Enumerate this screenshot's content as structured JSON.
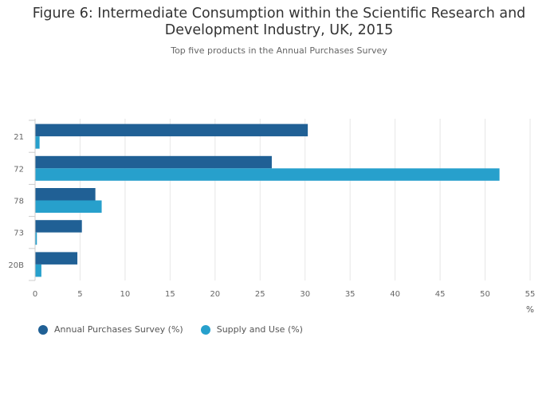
{
  "chart_data": {
    "type": "bar",
    "orientation": "horizontal",
    "title": "Figure 6: Intermediate Consumption within the Scientific Research and Development Industry, UK, 2015",
    "subtitle": "Top five products in the Annual Purchases Survey",
    "categories": [
      "21",
      "72",
      "78",
      "73",
      "20B"
    ],
    "series": [
      {
        "name": "Annual Purchases Survey (%)",
        "color": "#206095",
        "values": [
          30.3,
          26.3,
          6.7,
          5.2,
          4.7
        ]
      },
      {
        "name": "Supply and Use (%)",
        "color": "#27a0cc",
        "values": [
          0.5,
          51.6,
          7.4,
          0.2,
          0.7
        ]
      }
    ],
    "xlabel": "%",
    "ylabel": "",
    "xlim": [
      0,
      55
    ],
    "xticks": [
      0,
      5,
      10,
      15,
      20,
      25,
      30,
      35,
      40,
      45,
      50,
      55
    ],
    "grid": true,
    "legend_position": "bottom-left"
  }
}
